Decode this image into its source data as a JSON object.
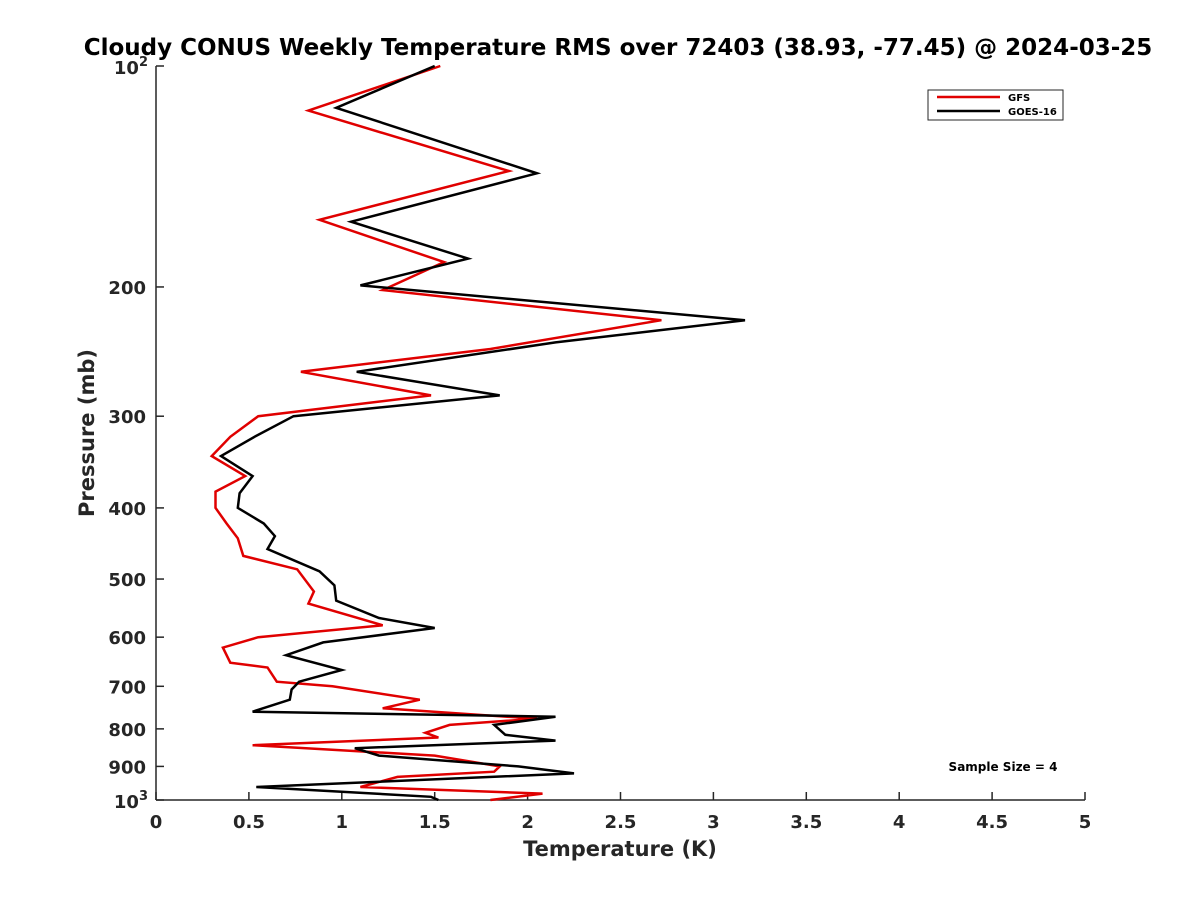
{
  "chart_data": {
    "type": "line",
    "title": "Cloudy CONUS Weekly Temperature RMS over 72403 (38.93, -77.45) @ 2024-03-25",
    "xlabel": "Temperature (K)",
    "ylabel": "Pressure (mb)",
    "xlim": [
      0,
      5
    ],
    "ylim": [
      1000,
      100
    ],
    "y_scale": "log",
    "y_direction": "reversed",
    "grid": false,
    "legend_position": "top-right",
    "annotation": "Sample Size = 4",
    "x_ticks": [
      "0",
      "0.5",
      "1",
      "1.5",
      "2",
      "2.5",
      "3",
      "3.5",
      "4",
      "4.5",
      "5"
    ],
    "y_ticks": [
      {
        "value": 100,
        "base": "10",
        "exp": "2"
      },
      {
        "value": 200,
        "label": "200"
      },
      {
        "value": 300,
        "label": "300"
      },
      {
        "value": 400,
        "label": "400"
      },
      {
        "value": 500,
        "label": "500"
      },
      {
        "value": 600,
        "label": "600"
      },
      {
        "value": 700,
        "label": "700"
      },
      {
        "value": 800,
        "label": "800"
      },
      {
        "value": 900,
        "label": "900"
      },
      {
        "value": 1000,
        "base": "10",
        "exp": "3"
      }
    ],
    "series": [
      {
        "name": "GFS",
        "color": "#e00000",
        "points": [
          {
            "x": 1.53,
            "p": 100
          },
          {
            "x": 0.82,
            "p": 115
          },
          {
            "x": 1.9,
            "p": 139
          },
          {
            "x": 0.88,
            "p": 162
          },
          {
            "x": 1.55,
            "p": 185
          },
          {
            "x": 1.22,
            "p": 202
          },
          {
            "x": 2.72,
            "p": 222
          },
          {
            "x": 1.8,
            "p": 243
          },
          {
            "x": 0.78,
            "p": 261
          },
          {
            "x": 1.48,
            "p": 281
          },
          {
            "x": 0.55,
            "p": 300
          },
          {
            "x": 0.4,
            "p": 320
          },
          {
            "x": 0.3,
            "p": 340
          },
          {
            "x": 0.48,
            "p": 362
          },
          {
            "x": 0.32,
            "p": 380
          },
          {
            "x": 0.32,
            "p": 400
          },
          {
            "x": 0.38,
            "p": 420
          },
          {
            "x": 0.44,
            "p": 440
          },
          {
            "x": 0.47,
            "p": 465
          },
          {
            "x": 0.76,
            "p": 485
          },
          {
            "x": 0.85,
            "p": 520
          },
          {
            "x": 0.82,
            "p": 540
          },
          {
            "x": 1.22,
            "p": 578
          },
          {
            "x": 0.55,
            "p": 600
          },
          {
            "x": 0.36,
            "p": 620
          },
          {
            "x": 0.4,
            "p": 650
          },
          {
            "x": 0.6,
            "p": 660
          },
          {
            "x": 0.65,
            "p": 690
          },
          {
            "x": 0.95,
            "p": 700
          },
          {
            "x": 1.42,
            "p": 730
          },
          {
            "x": 1.22,
            "p": 750
          },
          {
            "x": 2.05,
            "p": 775
          },
          {
            "x": 1.58,
            "p": 790
          },
          {
            "x": 1.45,
            "p": 810
          },
          {
            "x": 1.52,
            "p": 822
          },
          {
            "x": 0.52,
            "p": 842
          },
          {
            "x": 1.5,
            "p": 870
          },
          {
            "x": 1.85,
            "p": 900
          },
          {
            "x": 1.82,
            "p": 915
          },
          {
            "x": 1.3,
            "p": 930
          },
          {
            "x": 1.1,
            "p": 960
          },
          {
            "x": 2.08,
            "p": 980
          },
          {
            "x": 1.8,
            "p": 1000
          }
        ]
      },
      {
        "name": "GOES-16",
        "color": "#000000",
        "points": [
          {
            "x": 1.5,
            "p": 100
          },
          {
            "x": 0.97,
            "p": 114
          },
          {
            "x": 2.05,
            "p": 140
          },
          {
            "x": 1.05,
            "p": 163
          },
          {
            "x": 1.68,
            "p": 183
          },
          {
            "x": 1.1,
            "p": 199
          },
          {
            "x": 3.17,
            "p": 222
          },
          {
            "x": 2.15,
            "p": 238
          },
          {
            "x": 1.08,
            "p": 261
          },
          {
            "x": 1.85,
            "p": 281
          },
          {
            "x": 0.74,
            "p": 300
          },
          {
            "x": 0.53,
            "p": 320
          },
          {
            "x": 0.35,
            "p": 340
          },
          {
            "x": 0.52,
            "p": 362
          },
          {
            "x": 0.45,
            "p": 382
          },
          {
            "x": 0.44,
            "p": 400
          },
          {
            "x": 0.58,
            "p": 420
          },
          {
            "x": 0.64,
            "p": 437
          },
          {
            "x": 0.6,
            "p": 455
          },
          {
            "x": 0.88,
            "p": 488
          },
          {
            "x": 0.96,
            "p": 510
          },
          {
            "x": 0.97,
            "p": 535
          },
          {
            "x": 1.2,
            "p": 565
          },
          {
            "x": 1.5,
            "p": 583
          },
          {
            "x": 0.9,
            "p": 610
          },
          {
            "x": 0.7,
            "p": 635
          },
          {
            "x": 1.0,
            "p": 665
          },
          {
            "x": 0.77,
            "p": 690
          },
          {
            "x": 0.73,
            "p": 707
          },
          {
            "x": 0.72,
            "p": 730
          },
          {
            "x": 0.52,
            "p": 758
          },
          {
            "x": 2.15,
            "p": 770
          },
          {
            "x": 1.82,
            "p": 790
          },
          {
            "x": 1.88,
            "p": 815
          },
          {
            "x": 2.15,
            "p": 830
          },
          {
            "x": 1.07,
            "p": 850
          },
          {
            "x": 1.2,
            "p": 870
          },
          {
            "x": 1.95,
            "p": 900
          },
          {
            "x": 2.25,
            "p": 920
          },
          {
            "x": 0.54,
            "p": 960
          },
          {
            "x": 1.48,
            "p": 990
          },
          {
            "x": 1.52,
            "p": 1000
          }
        ]
      }
    ]
  }
}
